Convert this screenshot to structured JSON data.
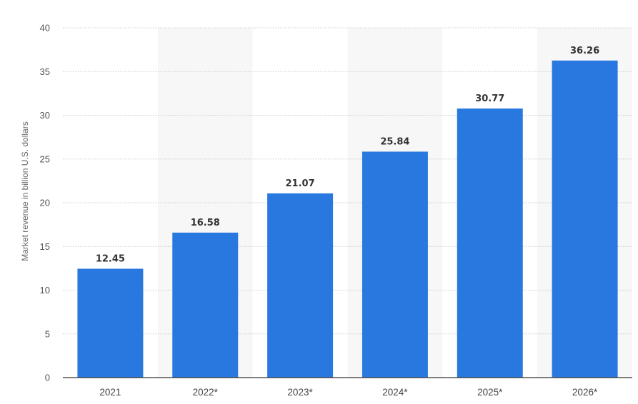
{
  "chart_data": {
    "type": "bar",
    "title": "",
    "xlabel": "",
    "ylabel": "Market revenue in billion U.S. dollars",
    "categories": [
      "2021",
      "2022*",
      "2023*",
      "2024*",
      "2025*",
      "2026*"
    ],
    "values": [
      12.45,
      16.58,
      21.07,
      25.84,
      30.77,
      36.26
    ],
    "data_labels": [
      "12.45",
      "16.58",
      "21.07",
      "25.84",
      "30.77",
      "36.26"
    ],
    "ylim": [
      0,
      40
    ],
    "yticks": [
      "0",
      "5",
      "10",
      "15",
      "20",
      "25",
      "30",
      "35",
      "40"
    ],
    "grid": true,
    "legend": "none",
    "colors": {
      "bar": "#2878e0",
      "band": "#f7f7f7",
      "grid": "#c8c8c8",
      "baseline": "#333333"
    }
  }
}
